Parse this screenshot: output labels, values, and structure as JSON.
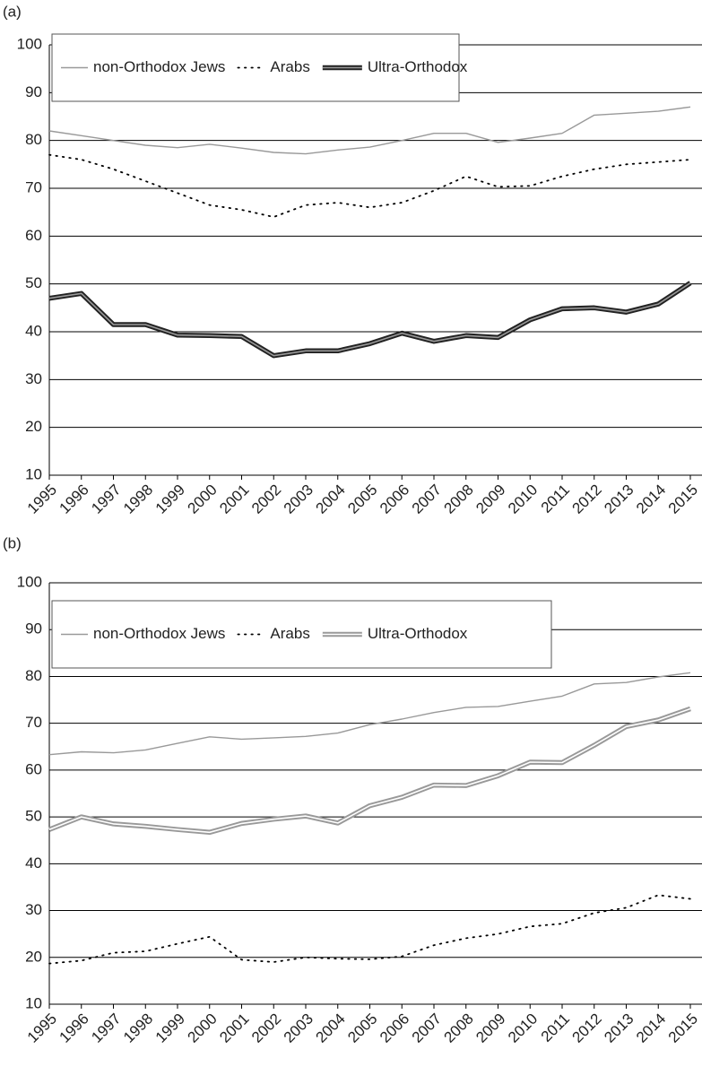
{
  "chart_data": [
    {
      "type": "line",
      "title": "(a)",
      "categories": [
        "1995",
        "1996",
        "1997",
        "1998",
        "1999",
        "2000",
        "2001",
        "2002",
        "2003",
        "2004",
        "2005",
        "2006",
        "2007",
        "2008",
        "2009",
        "2010",
        "2011",
        "2012",
        "2013",
        "2014",
        "2015"
      ],
      "series": [
        {
          "name": "non-Orthodox Jews",
          "color": "#999999",
          "style": "solid",
          "values": [
            82,
            81,
            80,
            79,
            78.5,
            79.2,
            78.4,
            77.5,
            77.2,
            78,
            78.6,
            80,
            81.5,
            81.5,
            79.6,
            80.5,
            81.5,
            85.3,
            85.7,
            86.1,
            87
          ]
        },
        {
          "name": "Arabs",
          "color": "#000000",
          "style": "dotted",
          "values": [
            77,
            76,
            74,
            71.5,
            69,
            66.5,
            65.5,
            64,
            66.5,
            67,
            66,
            67,
            69.5,
            72.5,
            70.3,
            70.5,
            72.5,
            74,
            75,
            75.5,
            76
          ]
        },
        {
          "name": "Ultra-Orthodox",
          "color": "#222222",
          "inner_color": "#999999",
          "style": "double",
          "values": [
            47,
            48,
            41.5,
            41.5,
            39.3,
            39.2,
            39,
            35,
            36,
            36,
            37.5,
            39.7,
            38,
            39.2,
            38.8,
            42.5,
            44.8,
            45,
            44.1,
            45.8,
            50.2
          ]
        }
      ],
      "ylim": [
        10,
        100
      ],
      "yticks": [
        10,
        20,
        30,
        40,
        50,
        60,
        70,
        80,
        90,
        100
      ],
      "grid": true,
      "legend": "top-left"
    },
    {
      "type": "line",
      "title": "(b)",
      "categories": [
        "1995",
        "1996",
        "1997",
        "1998",
        "1999",
        "2000",
        "2001",
        "2002",
        "2003",
        "2004",
        "2005",
        "2006",
        "2007",
        "2008",
        "2009",
        "2010",
        "2011",
        "2012",
        "2013",
        "2014",
        "2015"
      ],
      "series": [
        {
          "name": "non-Orthodox Jews",
          "color": "#999999",
          "style": "solid",
          "values": [
            63.3,
            63.9,
            63.7,
            64.3,
            65.7,
            67.1,
            66.6,
            66.9,
            67.2,
            67.9,
            69.7,
            70.9,
            72.3,
            73.4,
            73.6,
            74.7,
            75.8,
            78.4,
            78.7,
            79.9,
            80.8
          ]
        },
        {
          "name": "Arabs",
          "color": "#000000",
          "style": "dotted",
          "values": [
            18.7,
            19.3,
            21,
            21.3,
            22.9,
            24.4,
            19.5,
            19,
            20,
            19.7,
            19.6,
            20.2,
            22.6,
            24.1,
            25,
            26.6,
            27.2,
            29.5,
            30.6,
            33.3,
            32.5
          ]
        },
        {
          "name": "Ultra-Orthodox",
          "color": "#999999",
          "inner_color": "#ffffff",
          "style": "double",
          "values": [
            47.3,
            50,
            48.5,
            48,
            47.3,
            46.7,
            48.6,
            49.5,
            50.2,
            48.7,
            52.4,
            54.2,
            56.8,
            56.7,
            58.8,
            61.7,
            61.6,
            65.3,
            69.3,
            70.7,
            73.1
          ]
        }
      ],
      "ylim": [
        10,
        100
      ],
      "yticks": [
        10,
        20,
        30,
        40,
        50,
        60,
        70,
        80,
        90,
        100
      ],
      "grid": true,
      "legend": "top-left"
    }
  ]
}
